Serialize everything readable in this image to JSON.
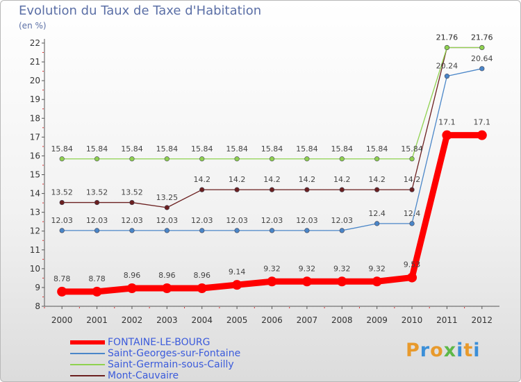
{
  "title": "Evolution du Taux de Taxe d'Habitation",
  "subtitle": "(en %)",
  "logo": "Proxiti",
  "chart_data": {
    "type": "line",
    "title": "Evolution du Taux de Taxe d'Habitation",
    "ylabel": "(en %)",
    "xlabel": "",
    "x": [
      "2000",
      "2001",
      "2002",
      "2003",
      "2004",
      "2005",
      "2006",
      "2007",
      "2008",
      "2009",
      "2010",
      "2011",
      "2012"
    ],
    "ylim": [
      8,
      22
    ],
    "yticks": [
      8,
      9,
      10,
      11,
      12,
      13,
      14,
      15,
      16,
      17,
      18,
      19,
      20,
      21,
      22
    ],
    "grid": false,
    "legend_position": "bottom-left",
    "series": [
      {
        "name": "FONTAINE-LE-BOURG",
        "color": "#ff0000",
        "values": [
          8.78,
          8.78,
          8.96,
          8.96,
          8.96,
          9.14,
          9.32,
          9.32,
          9.32,
          9.32,
          9.53,
          17.1,
          17.1
        ],
        "labels": [
          "8.78",
          "8.78",
          "8.96",
          "8.96",
          "8.96",
          "9.14",
          "9.32",
          "9.32",
          "9.32",
          "9.32",
          "9.53",
          "17.1",
          "17.1"
        ]
      },
      {
        "name": "Saint-Georges-sur-Fontaine",
        "color": "#4a86c8",
        "values": [
          12.03,
          12.03,
          12.03,
          12.03,
          12.03,
          12.03,
          12.03,
          12.03,
          12.03,
          12.4,
          12.4,
          20.24,
          20.64
        ],
        "labels": [
          "12.03",
          "12.03",
          "12.03",
          "12.03",
          "12.03",
          "12.03",
          "12.03",
          "12.03",
          "12.03",
          "12.4",
          "12.4",
          "20.24",
          "20.64"
        ]
      },
      {
        "name": "Saint-Germain-sous-Cailly",
        "color": "#8fd14f",
        "values": [
          15.84,
          15.84,
          15.84,
          15.84,
          15.84,
          15.84,
          15.84,
          15.84,
          15.84,
          15.84,
          15.84,
          21.76,
          21.76
        ],
        "labels": [
          "15.84",
          "15.84",
          "15.84",
          "15.84",
          "15.84",
          "15.84",
          "15.84",
          "15.84",
          "15.84",
          "15.84",
          "15.84",
          "21.76",
          "21.76"
        ]
      },
      {
        "name": "Mont-Cauvaire",
        "color": "#6b1f1f",
        "values": [
          13.52,
          13.52,
          13.52,
          13.25,
          14.2,
          14.2,
          14.2,
          14.2,
          14.2,
          14.2,
          14.2,
          21.76,
          21.76
        ],
        "labels": [
          "13.52",
          "13.52",
          "13.52",
          "13.25",
          "14.2",
          "14.2",
          "14.2",
          "14.2",
          "14.2",
          "14.2",
          "14.2",
          "21.76",
          "21.76"
        ]
      }
    ]
  }
}
